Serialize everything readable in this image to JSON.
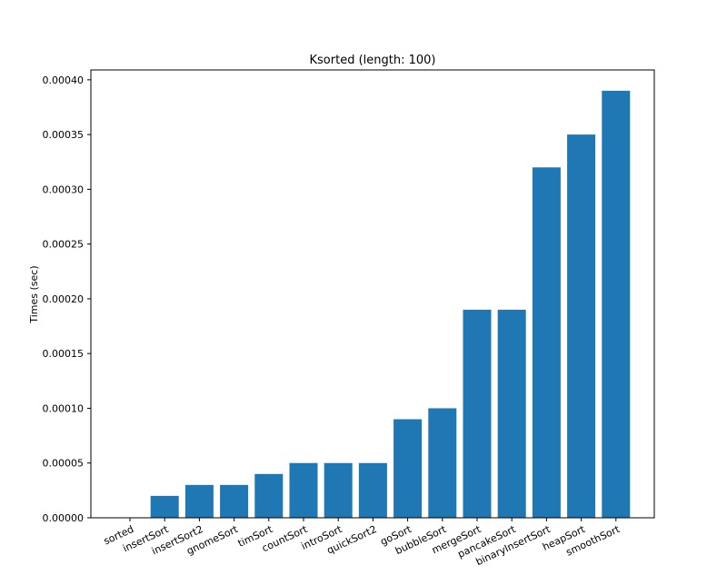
{
  "chart_data": {
    "type": "bar",
    "title": "Ksorted (length: 100)",
    "xlabel": "",
    "ylabel": "Times (sec)",
    "categories": [
      "sorted",
      "insertSort",
      "insertSort2",
      "gnomeSort",
      "timSort",
      "countSort",
      "introSort",
      "quickSort2",
      "goSort",
      "bubbleSort",
      "mergeSort",
      "pancakeSort",
      "binaryInsertSort",
      "heapSort",
      "smoothSort"
    ],
    "values": [
      0.0,
      2e-05,
      3e-05,
      3e-05,
      4e-05,
      5e-05,
      5e-05,
      5e-05,
      9e-05,
      0.0001,
      0.00019,
      0.00019,
      0.00032,
      0.00035,
      0.00039
    ],
    "yticks": [
      0.0,
      5e-05,
      0.0001,
      0.00015,
      0.0002,
      0.00025,
      0.0003,
      0.00035,
      0.0004
    ],
    "ytick_labels": [
      "0.00000",
      "0.00005",
      "0.00010",
      "0.00015",
      "0.00020",
      "0.00025",
      "0.00030",
      "0.00035",
      "0.00040"
    ],
    "ylim": [
      0,
      0.000409
    ],
    "bar_color": "#1f77b4",
    "grid": false,
    "legend": "none"
  }
}
